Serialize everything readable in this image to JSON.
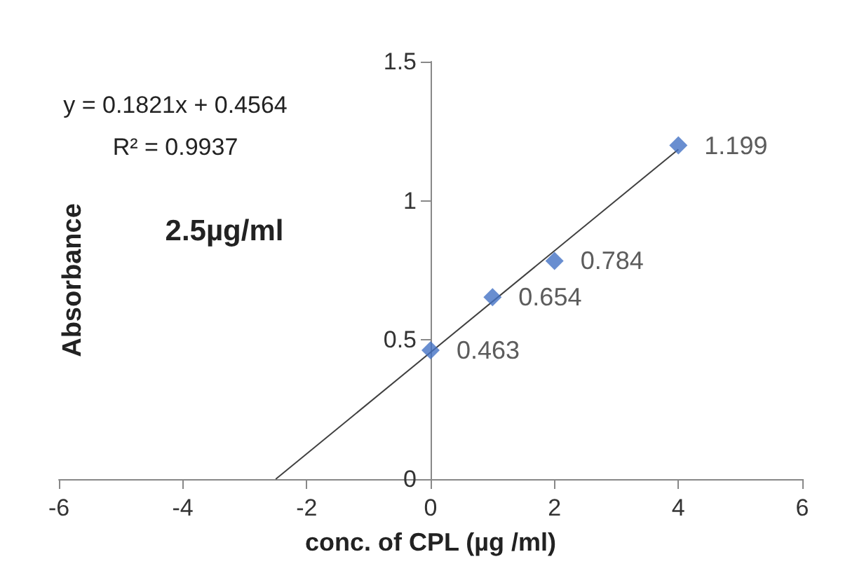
{
  "chart_data": {
    "type": "scatter",
    "xlabel": "conc. of CPL (µg /ml)",
    "ylabel": "Absorbance",
    "xlim": [
      -6,
      6
    ],
    "xticks": [
      -6,
      -4,
      -2,
      0,
      2,
      4,
      6
    ],
    "ylim": [
      0,
      1.5
    ],
    "yticks": [
      0,
      0.5,
      1,
      1.5
    ],
    "grid": false,
    "marker": "diamond",
    "annotations": [
      "y = 0.1821x + 0.4564",
      "R² = 0.9937",
      "2.5µg/ml"
    ],
    "series": [
      {
        "color": "#4472c4",
        "x": [
          0,
          1,
          2,
          4
        ],
        "values": [
          0.463,
          0.654,
          0.784,
          1.199
        ],
        "value_labels": [
          "0.463",
          "0.654",
          "0.784",
          "1.199"
        ]
      },
      {
        "type": "line",
        "color": "#404040",
        "marker": "none",
        "line_style": "solid",
        "x": [
          -2.5,
          4
        ],
        "values": [
          0,
          1.185
        ]
      }
    ]
  }
}
